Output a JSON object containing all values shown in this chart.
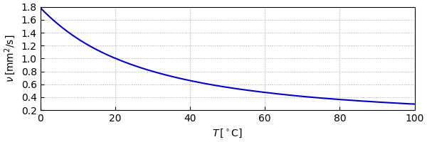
{
  "title": "",
  "xlabel": "$T\\,[^\\circ\\mathrm{C}]$",
  "ylabel": "$\\nu\\,[\\mathrm{mm}^2/\\mathrm{s}]$",
  "xlim": [
    0,
    100
  ],
  "ylim": [
    0.2,
    1.8
  ],
  "xticks": [
    0,
    20,
    40,
    60,
    80,
    100
  ],
  "yticks": [
    0.2,
    0.4,
    0.6,
    0.8,
    1.0,
    1.2,
    1.4,
    1.6,
    1.8
  ],
  "line_color": "#0000CC",
  "line_width": 1.5,
  "grid_color": "#aaaaaa",
  "grid_style": "dotted",
  "background_color": "#ffffff"
}
